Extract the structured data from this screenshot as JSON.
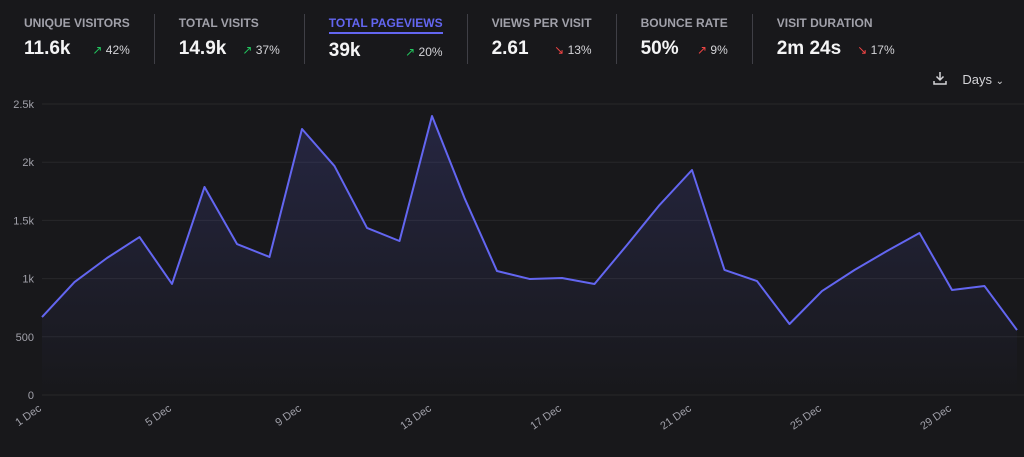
{
  "stats": [
    {
      "label": "UNIQUE VISITORS",
      "value": "11.6k",
      "change": "42%",
      "dir": "up"
    },
    {
      "label": "TOTAL VISITS",
      "value": "14.9k",
      "change": "37%",
      "dir": "up"
    },
    {
      "label": "TOTAL PAGEVIEWS",
      "value": "39k",
      "change": "20%",
      "dir": "up",
      "active": true
    },
    {
      "label": "VIEWS PER VISIT",
      "value": "2.61",
      "change": "13%",
      "dir": "down"
    },
    {
      "label": "BOUNCE RATE",
      "value": "50%",
      "change": "9%",
      "dir": "up_bad"
    },
    {
      "label": "VISIT DURATION",
      "value": "2m 24s",
      "change": "17%",
      "dir": "down"
    }
  ],
  "toolbar": {
    "interval": "Days"
  },
  "colors": {
    "line": "#6366f1",
    "up": "#22c55e",
    "down": "#ef4444"
  },
  "chart_data": {
    "type": "area",
    "ylim": [
      0,
      2500
    ],
    "yticks": [
      0,
      500,
      1000,
      1500,
      2000,
      2500
    ],
    "ytick_labels": [
      "0",
      "500",
      "1k",
      "1.5k",
      "2k",
      "2.5k"
    ],
    "xtick_labels": [
      "1 Dec",
      "5 Dec",
      "9 Dec",
      "13 Dec",
      "17 Dec",
      "21 Dec",
      "25 Dec",
      "29 Dec"
    ],
    "x": [
      "1 Dec",
      "2 Dec",
      "3 Dec",
      "4 Dec",
      "5 Dec",
      "6 Dec",
      "7 Dec",
      "8 Dec",
      "9 Dec",
      "10 Dec",
      "11 Dec",
      "12 Dec",
      "13 Dec",
      "14 Dec",
      "15 Dec",
      "16 Dec",
      "17 Dec",
      "18 Dec",
      "19 Dec",
      "20 Dec",
      "21 Dec",
      "22 Dec",
      "23 Dec",
      "24 Dec",
      "25 Dec",
      "26 Dec",
      "27 Dec",
      "28 Dec",
      "29 Dec",
      "30 Dec",
      "31 Dec"
    ],
    "values": [
      670,
      970,
      1177,
      1357,
      954,
      1787,
      1297,
      1186,
      2285,
      1967,
      1435,
      1323,
      2397,
      1692,
      1065,
      997,
      1005,
      954,
      1289,
      1632,
      1933,
      1074,
      979,
      610,
      893,
      1074,
      1237,
      1392,
      902,
      936,
      558
    ]
  }
}
